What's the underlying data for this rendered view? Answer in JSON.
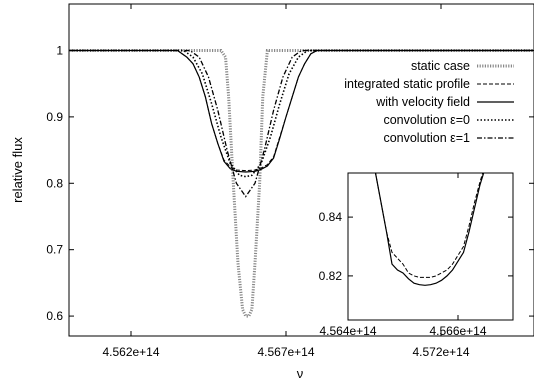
{
  "chart_data": [
    {
      "type": "line",
      "xlabel": "ν",
      "ylabel": "relative flux",
      "xlim": [
        456.0,
        457.5
      ],
      "ylim": [
        0.57,
        1.07
      ],
      "x_unit_note": "x values in units of 1e12",
      "xticks": [
        {
          "value": 456.2,
          "label": "4.562e+14"
        },
        {
          "value": 456.7,
          "label": "4.567e+14"
        },
        {
          "value": 457.2,
          "label": "4.572e+14"
        }
      ],
      "yticks": [
        {
          "value": 0.6,
          "label": "0.6"
        },
        {
          "value": 0.7,
          "label": "0.7"
        },
        {
          "value": 0.8,
          "label": "0.8"
        },
        {
          "value": 0.9,
          "label": "0.9"
        },
        {
          "value": 1.0,
          "label": "1"
        }
      ],
      "legend_position": "top-right",
      "series": [
        {
          "name": "static case",
          "style": "dotted-thick",
          "color": "#888888",
          "x": [
            456.0,
            456.49,
            456.505,
            456.515,
            456.53,
            456.545,
            456.56,
            456.57,
            456.58,
            456.59,
            456.6,
            456.615,
            456.625,
            456.64,
            457.5
          ],
          "y": [
            1.0,
            1.0,
            0.99,
            0.93,
            0.8,
            0.68,
            0.61,
            0.6,
            0.6,
            0.61,
            0.68,
            0.8,
            0.93,
            1.0,
            1.0
          ]
        },
        {
          "name": "integrated static profile",
          "style": "dashed",
          "color": "#000000",
          "x": [
            456.0,
            456.35,
            456.38,
            456.4,
            456.42,
            456.44,
            456.46,
            456.48,
            456.5,
            456.52,
            456.54,
            456.57,
            456.6,
            456.62,
            456.64,
            456.66,
            456.68,
            456.7,
            456.72,
            456.74,
            456.76,
            456.78,
            456.8,
            457.5
          ],
          "y": [
            1.0,
            1.0,
            0.99,
            0.98,
            0.96,
            0.93,
            0.89,
            0.86,
            0.835,
            0.825,
            0.82,
            0.819,
            0.82,
            0.823,
            0.828,
            0.84,
            0.87,
            0.9,
            0.93,
            0.96,
            0.98,
            0.995,
            1.0,
            1.0
          ]
        },
        {
          "name": "with velocity field",
          "style": "solid",
          "color": "#000000",
          "x": [
            456.0,
            456.35,
            456.38,
            456.4,
            456.42,
            456.44,
            456.46,
            456.48,
            456.5,
            456.52,
            456.54,
            456.57,
            456.6,
            456.62,
            456.64,
            456.66,
            456.68,
            456.7,
            456.72,
            456.74,
            456.76,
            456.78,
            456.8,
            457.5
          ],
          "y": [
            1.0,
            1.0,
            0.99,
            0.98,
            0.96,
            0.93,
            0.89,
            0.86,
            0.833,
            0.822,
            0.818,
            0.817,
            0.818,
            0.821,
            0.826,
            0.838,
            0.868,
            0.9,
            0.93,
            0.96,
            0.98,
            0.995,
            1.0,
            1.0
          ]
        },
        {
          "name": "convolution ε=0",
          "style": "dotted",
          "color": "#000000",
          "x": [
            456.0,
            456.37,
            456.4,
            456.43,
            456.46,
            456.49,
            456.52,
            456.55,
            456.57,
            456.59,
            456.62,
            456.65,
            456.68,
            456.71,
            456.74,
            456.77,
            457.5
          ],
          "y": [
            1.0,
            1.0,
            0.99,
            0.965,
            0.92,
            0.87,
            0.83,
            0.812,
            0.81,
            0.812,
            0.83,
            0.87,
            0.92,
            0.965,
            0.99,
            1.0,
            1.0
          ]
        },
        {
          "name": "convolution ε=1",
          "style": "dashdot",
          "color": "#000000",
          "x": [
            456.0,
            456.39,
            456.42,
            456.45,
            456.48,
            456.51,
            456.54,
            456.57,
            456.6,
            456.63,
            456.66,
            456.69,
            456.72,
            456.75,
            457.5
          ],
          "y": [
            1.0,
            1.0,
            0.99,
            0.96,
            0.91,
            0.85,
            0.8,
            0.78,
            0.8,
            0.85,
            0.91,
            0.96,
            0.99,
            1.0,
            1.0
          ]
        }
      ]
    },
    {
      "type": "line",
      "xlim": [
        456.4,
        456.7
      ],
      "ylim": [
        0.805,
        0.855
      ],
      "xticks": [
        {
          "value": 456.4,
          "label": "4.564e+14"
        },
        {
          "value": 456.6,
          "label": "4.566e+14"
        }
      ],
      "yticks": [
        {
          "value": 0.82,
          "label": "0.82"
        },
        {
          "value": 0.84,
          "label": "0.84"
        }
      ],
      "series": [
        {
          "name": "integrated static profile",
          "style": "dashed",
          "color": "#000000",
          "x": [
            456.45,
            456.46,
            456.47,
            456.48,
            456.49,
            456.5,
            456.51,
            456.52,
            456.53,
            456.54,
            456.55,
            456.56,
            456.57,
            456.58,
            456.59,
            456.6,
            456.61,
            456.62,
            456.63,
            456.64,
            456.65
          ],
          "y": [
            0.855,
            0.845,
            0.835,
            0.828,
            0.826,
            0.824,
            0.821,
            0.82,
            0.8195,
            0.8195,
            0.8195,
            0.82,
            0.821,
            0.822,
            0.824,
            0.827,
            0.83,
            0.837,
            0.845,
            0.852,
            0.858
          ]
        },
        {
          "name": "with velocity field",
          "style": "solid",
          "color": "#000000",
          "x": [
            456.45,
            456.46,
            456.47,
            456.48,
            456.49,
            456.5,
            456.51,
            456.52,
            456.53,
            456.54,
            456.55,
            456.56,
            456.57,
            456.58,
            456.59,
            456.6,
            456.61,
            456.62,
            456.63,
            456.64,
            456.65
          ],
          "y": [
            0.855,
            0.845,
            0.835,
            0.824,
            0.822,
            0.821,
            0.819,
            0.8175,
            0.817,
            0.8168,
            0.817,
            0.8175,
            0.8185,
            0.82,
            0.822,
            0.825,
            0.828,
            0.835,
            0.843,
            0.851,
            0.857
          ]
        }
      ]
    }
  ]
}
